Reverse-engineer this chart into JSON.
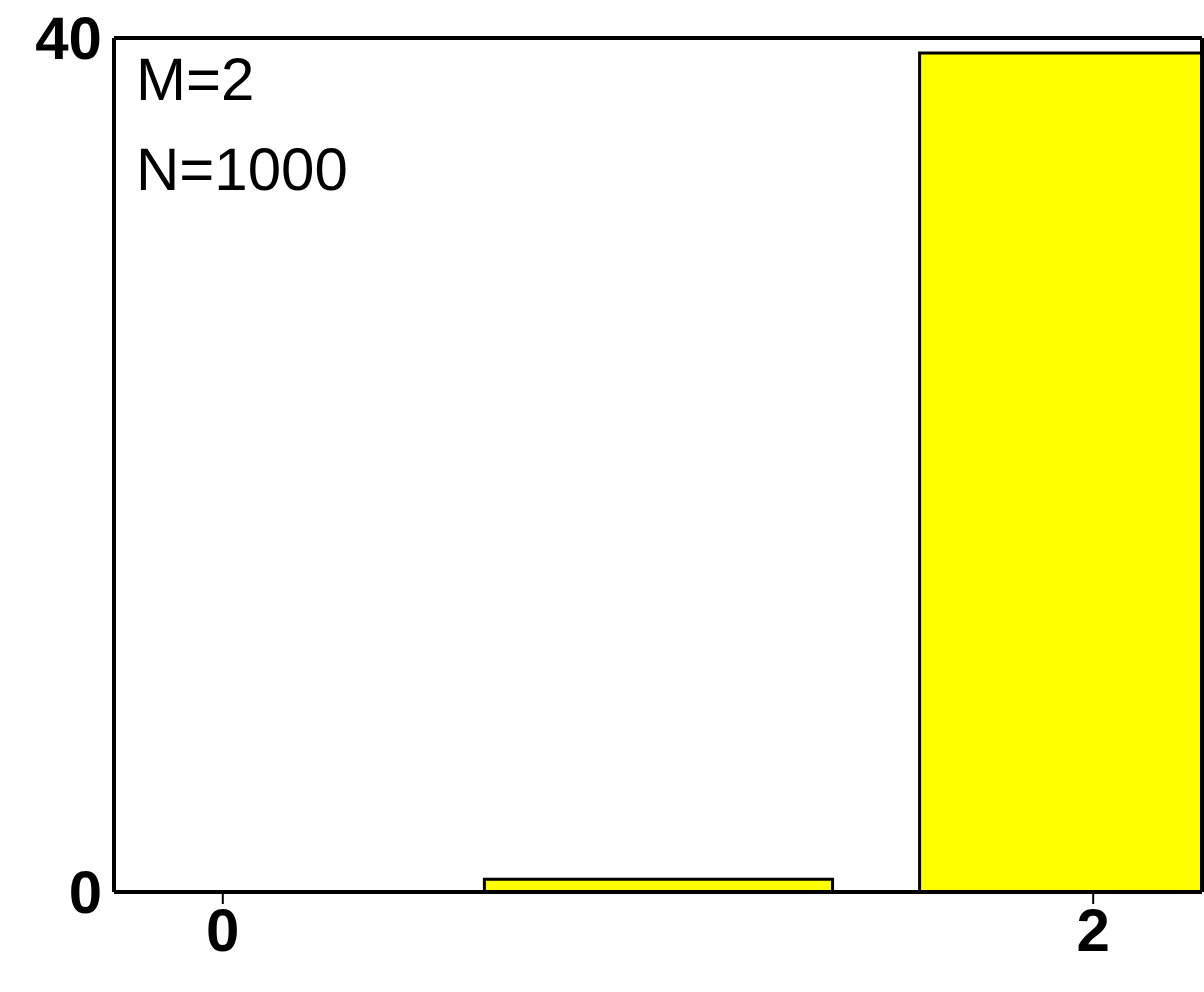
{
  "chart_data": {
    "type": "bar",
    "x": [
      0,
      1,
      2
    ],
    "values": [
      0,
      0.6,
      39.3
    ],
    "color": "#ffff00",
    "xlim": [
      -0.25,
      2.25
    ],
    "xticks": [
      0,
      2
    ],
    "ylim": [
      0,
      40
    ],
    "yticks": [
      0,
      40
    ],
    "annotations": [
      "M=2",
      "N=1000"
    ]
  }
}
